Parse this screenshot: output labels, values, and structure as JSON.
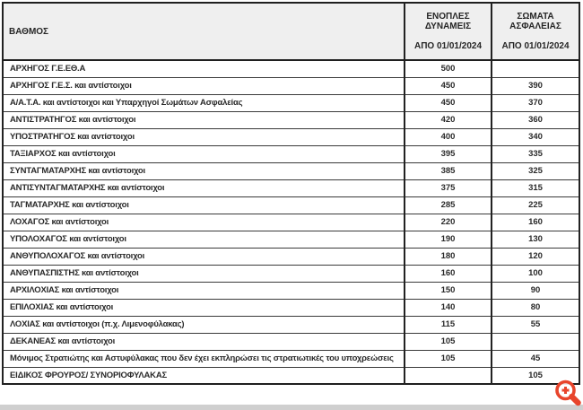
{
  "table": {
    "header": {
      "rank_column_label": "ΒΑΘΜΟΣ",
      "armed_forces": {
        "line1": "ΕΝΟΠΛΕΣ",
        "line2": "ΔΥΝΑΜΕΙΣ",
        "effective_date": "ΑΠΟ 01/01/2024"
      },
      "security_corps": {
        "line1": "ΣΩΜΑΤΑ",
        "line2": "ΑΣΦΑΛΕΙΑΣ",
        "effective_date": "ΑΠΟ 01/01/2024"
      }
    },
    "rows": [
      {
        "rank": "ΑΡΧΗΓΟΣ Γ.Ε.ΕΘ.Α",
        "armed_forces": "500",
        "security_corps": ""
      },
      {
        "rank": "ΑΡΧΗΓΟΣ Γ.Ε.Σ. και αντίστοιχοι",
        "armed_forces": "450",
        "security_corps": "390"
      },
      {
        "rank": "Α/Α.Τ.Α. και αντίστοιχοι και Υπαρχηγοί Σωμάτων Ασφαλείας",
        "armed_forces": "450",
        "security_corps": "370"
      },
      {
        "rank": "ΑΝΤΙΣΤΡΑΤΗΓΟΣ και αντίστοιχοι",
        "armed_forces": "420",
        "security_corps": "360"
      },
      {
        "rank": "ΥΠΟΣΤΡΑΤΗΓΟΣ και αντίστοιχοι",
        "armed_forces": "400",
        "security_corps": "340"
      },
      {
        "rank": "ΤΑΞΙΑΡΧΟΣ και αντίστοιχοι",
        "armed_forces": "395",
        "security_corps": "335"
      },
      {
        "rank": "ΣΥΝΤΑΓΜΑΤΑΡΧΗΣ και αντίστοιχοι",
        "armed_forces": "385",
        "security_corps": "325"
      },
      {
        "rank": "ΑΝΤΙΣΥΝΤΑΓΜΑΤΑΡΧΗΣ και αντίστοιχοι",
        "armed_forces": "375",
        "security_corps": "315"
      },
      {
        "rank": "ΤΑΓΜΑΤΑΡΧΗΣ και αντίστοιχοι",
        "armed_forces": "285",
        "security_corps": "225"
      },
      {
        "rank": "ΛΟΧΑΓΟΣ και αντίστοιχοι",
        "armed_forces": "220",
        "security_corps": "160"
      },
      {
        "rank": "ΥΠΟΛΟΧΑΓΟΣ και αντίστοιχοι",
        "armed_forces": "190",
        "security_corps": "130"
      },
      {
        "rank": "ΑΝΘΥΠΟΛΟΧΑΓΟΣ και αντίστοιχοι",
        "armed_forces": "180",
        "security_corps": "120"
      },
      {
        "rank": "ΑΝΘΥΠΑΣΠΙΣΤΗΣ και αντίστοιχοι",
        "armed_forces": "160",
        "security_corps": "100"
      },
      {
        "rank": "ΑΡΧΙΛΟΧΙΑΣ και αντίστοιχοι",
        "armed_forces": "150",
        "security_corps": "90"
      },
      {
        "rank": "ΕΠΙΛΟΧΙΑΣ και αντίστοιχοι",
        "armed_forces": "140",
        "security_corps": "80"
      },
      {
        "rank": "ΛΟΧΙΑΣ και αντίστοιχοι (π.χ. Λιμενοφύλακας)",
        "armed_forces": "115",
        "security_corps": "55"
      },
      {
        "rank": "ΔΕΚΑΝΕΑΣ και αντίστοιχοι",
        "armed_forces": "105",
        "security_corps": ""
      },
      {
        "rank": "Μόνιμος Στρατιώτης και Αστυφύλακας που δεν έχει εκπληρώσει τις στρατιωτικές του υποχρεώσεις",
        "armed_forces": "105",
        "security_corps": "45"
      },
      {
        "rank": "ΕΙΔΙΚΟΣ ΦΡΟΥΡΟΣ/ ΣΥΝΟΡΙΟΦΥΛΑΚΑΣ",
        "armed_forces": "",
        "security_corps": "105"
      }
    ]
  },
  "overlay": {
    "zoom_icon": "magnifier-plus-icon",
    "zoom_icon_color": "#e8452c"
  },
  "colors": {
    "header_bg": "#efefef",
    "outer_border": "#1f1f1f",
    "row_border": "#3a3a3a",
    "text": "#2a2a2a",
    "bottom_strip": "#cfcfcf"
  }
}
